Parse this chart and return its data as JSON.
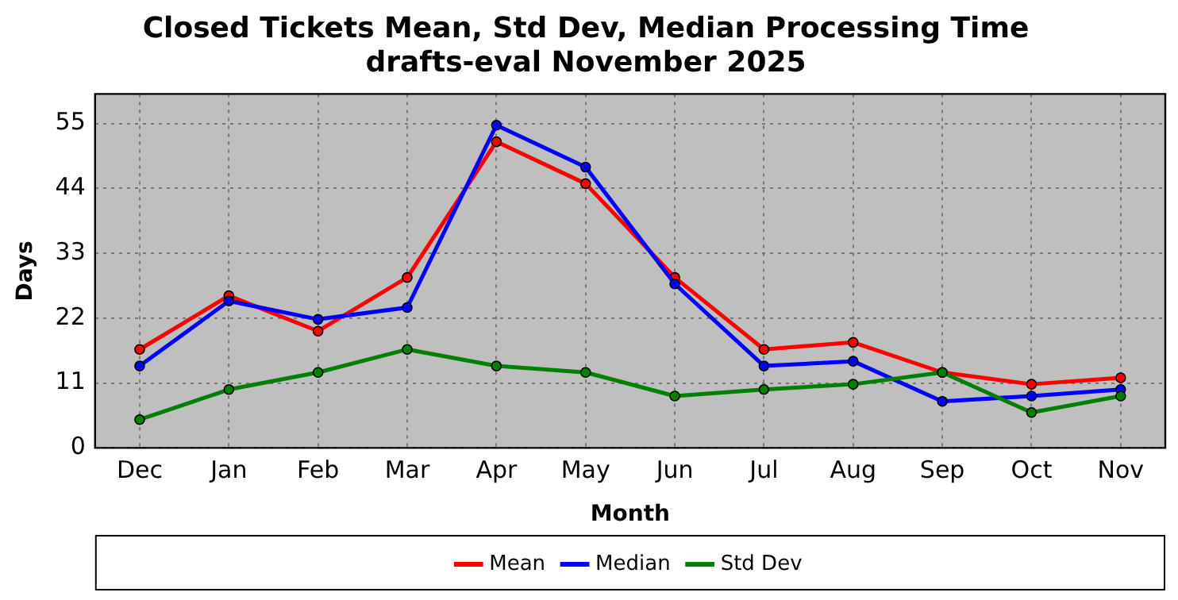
{
  "chart_data": {
    "type": "line",
    "title": "Closed Tickets Mean, Std Dev, Median Processing Time\ndrafts-eval November 2025",
    "xlabel": "Month",
    "ylabel": "Days",
    "categories": [
      "Dec",
      "Jan",
      "Feb",
      "Mar",
      "Apr",
      "May",
      "Jun",
      "Jul",
      "Aug",
      "Sep",
      "Oct",
      "Nov"
    ],
    "series": [
      {
        "name": "Mean",
        "color": "#ff0000",
        "values": [
          16.7,
          25.8,
          19.8,
          28.9,
          51.9,
          44.8,
          28.9,
          16.7,
          17.9,
          12.8,
          10.8,
          11.9
        ]
      },
      {
        "name": "Median",
        "color": "#0000ff",
        "values": [
          13.9,
          24.9,
          21.8,
          23.8,
          54.7,
          47.6,
          27.8,
          13.9,
          14.7,
          7.9,
          8.8,
          9.9
        ]
      },
      {
        "name": "Std Dev",
        "color": "#008000",
        "values": [
          4.8,
          9.9,
          12.8,
          16.7,
          13.9,
          12.8,
          8.8,
          9.9,
          10.8,
          12.8,
          6.0,
          8.8
        ]
      }
    ],
    "ylim": [
      0,
      60
    ],
    "yticks": [
      0,
      11,
      22,
      33,
      44,
      55
    ],
    "grid": true,
    "legend": "bottom",
    "marker": "circle",
    "line_style": "solid"
  }
}
